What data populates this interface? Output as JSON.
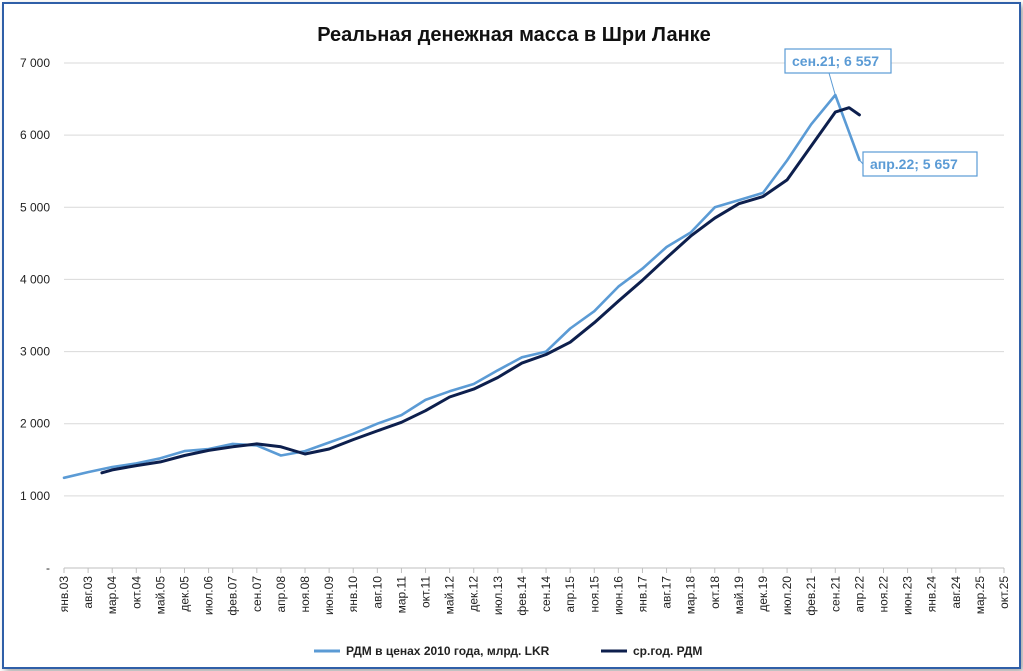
{
  "chart_data": {
    "type": "line",
    "title": "Реальная денежная масса в Шри Ланке",
    "xlabel": "",
    "ylabel": "",
    "ylim": [
      0,
      7000
    ],
    "y_ticks": [
      "-",
      "1 000",
      "2 000",
      "3 000",
      "4 000",
      "5 000",
      "6 000",
      "7 000"
    ],
    "x_tick_labels": [
      "янв.03",
      "авг.03",
      "мар.04",
      "окт.04",
      "май.05",
      "дек.05",
      "июл.06",
      "фев.07",
      "сен.07",
      "апр.08",
      "ноя.08",
      "июн.09",
      "янв.10",
      "авг.10",
      "мар.11",
      "окт.11",
      "май.12",
      "дек.12",
      "июл.13",
      "фев.14",
      "сен.14",
      "апр.15",
      "ноя.15",
      "июн.16",
      "янв.17",
      "авг.17",
      "мар.18",
      "окт.18",
      "май.19",
      "дек.19",
      "июл.20",
      "фев.21",
      "сен.21",
      "апр.22",
      "ноя.22",
      "июн.23",
      "янв.24",
      "авг.24",
      "мар.25",
      "окт.25"
    ],
    "x_range": [
      "янв.03",
      "окт.25"
    ],
    "grid": "horizontal",
    "legend_position": "bottom",
    "series": [
      {
        "name": "РДМ в ценах 2010 года, млрд. LKR",
        "color": "#5b9bd5",
        "points": [
          [
            "янв.03",
            1250
          ],
          [
            "авг.03",
            1330
          ],
          [
            "мар.04",
            1400
          ],
          [
            "окт.04",
            1450
          ],
          [
            "май.05",
            1520
          ],
          [
            "дек.05",
            1620
          ],
          [
            "июл.06",
            1650
          ],
          [
            "фев.07",
            1720
          ],
          [
            "сен.07",
            1700
          ],
          [
            "апр.08",
            1560
          ],
          [
            "ноя.08",
            1620
          ],
          [
            "июн.09",
            1740
          ],
          [
            "янв.10",
            1860
          ],
          [
            "авг.10",
            2000
          ],
          [
            "мар.11",
            2120
          ],
          [
            "окт.11",
            2330
          ],
          [
            "май.12",
            2450
          ],
          [
            "дек.12",
            2550
          ],
          [
            "июл.13",
            2740
          ],
          [
            "фев.14",
            2920
          ],
          [
            "сен.14",
            3000
          ],
          [
            "апр.15",
            3320
          ],
          [
            "ноя.15",
            3560
          ],
          [
            "июн.16",
            3900
          ],
          [
            "янв.17",
            4150
          ],
          [
            "авг.17",
            4450
          ],
          [
            "мар.18",
            4650
          ],
          [
            "окт.18",
            5000
          ],
          [
            "май.19",
            5100
          ],
          [
            "дек.19",
            5200
          ],
          [
            "июл.20",
            5650
          ],
          [
            "фев.21",
            6150
          ],
          [
            "сен.21",
            6557
          ],
          [
            "апр.22",
            5657
          ]
        ]
      },
      {
        "name": "ср.год. РДМ",
        "color": "#0d1f4d",
        "points": [
          [
            "дек.03",
            1320
          ],
          [
            "мар.04",
            1360
          ],
          [
            "окт.04",
            1420
          ],
          [
            "май.05",
            1470
          ],
          [
            "дек.05",
            1560
          ],
          [
            "июл.06",
            1630
          ],
          [
            "фев.07",
            1680
          ],
          [
            "сен.07",
            1720
          ],
          [
            "апр.08",
            1680
          ],
          [
            "ноя.08",
            1580
          ],
          [
            "июн.09",
            1650
          ],
          [
            "янв.10",
            1780
          ],
          [
            "авг.10",
            1900
          ],
          [
            "мар.11",
            2020
          ],
          [
            "окт.11",
            2180
          ],
          [
            "май.12",
            2370
          ],
          [
            "дек.12",
            2480
          ],
          [
            "июл.13",
            2640
          ],
          [
            "фев.14",
            2840
          ],
          [
            "сен.14",
            2960
          ],
          [
            "апр.15",
            3130
          ],
          [
            "ноя.15",
            3400
          ],
          [
            "июн.16",
            3700
          ],
          [
            "янв.17",
            3990
          ],
          [
            "авг.17",
            4300
          ],
          [
            "мар.18",
            4600
          ],
          [
            "окт.18",
            4850
          ],
          [
            "май.19",
            5050
          ],
          [
            "дек.19",
            5150
          ],
          [
            "июл.20",
            5380
          ],
          [
            "фев.21",
            5850
          ],
          [
            "сен.21",
            6320
          ],
          [
            "янв.22",
            6380
          ],
          [
            "апр.22",
            6280
          ]
        ]
      }
    ],
    "annotations": [
      {
        "date": "сен.21",
        "value": 6557,
        "text": "сен.21;  6 557"
      },
      {
        "date": "апр.22",
        "value": 5657,
        "text": "апр.22;  5 657"
      }
    ]
  }
}
